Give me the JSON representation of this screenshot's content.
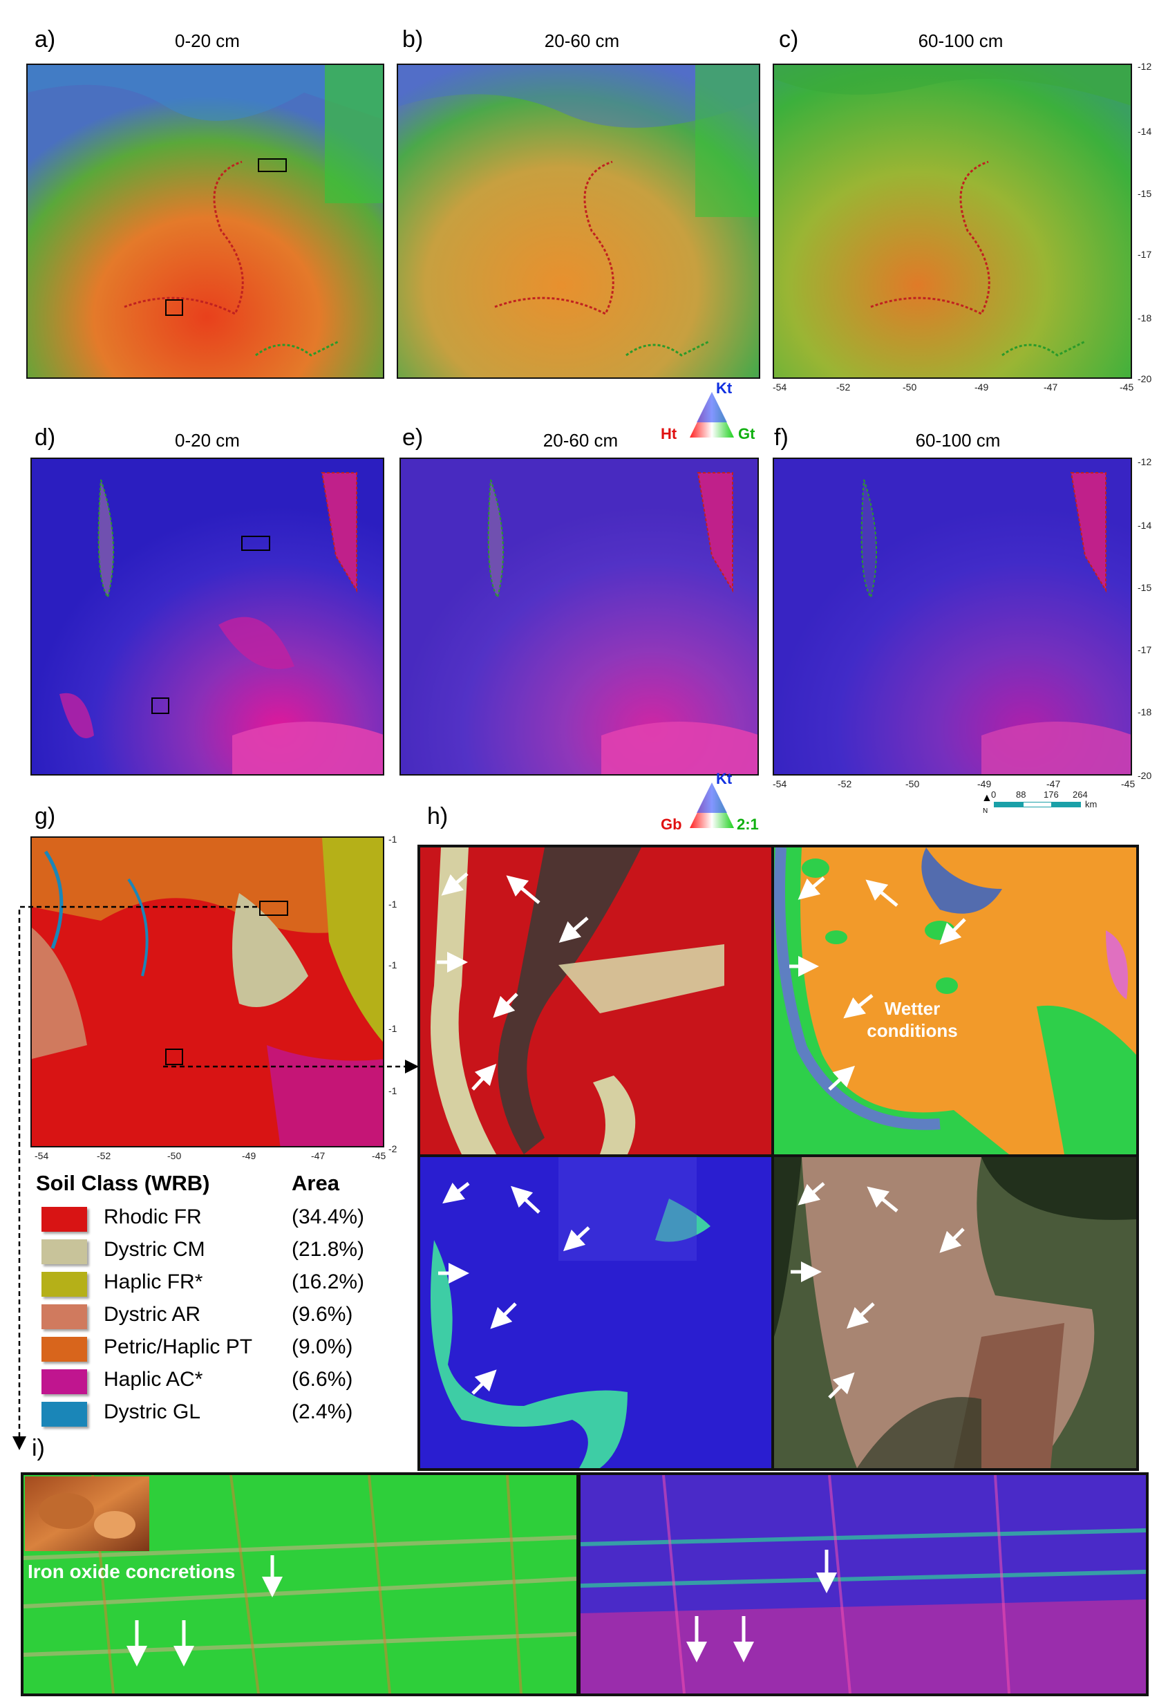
{
  "panels": {
    "a": {
      "label": "a)",
      "depth": "0-20 cm"
    },
    "b": {
      "label": "b)",
      "depth": "20-60 cm"
    },
    "c": {
      "label": "c)",
      "depth": "60-100 cm"
    },
    "d": {
      "label": "d)",
      "depth": "0-20 cm"
    },
    "e": {
      "label": "e)",
      "depth": "20-60 cm"
    },
    "f": {
      "label": "f)",
      "depth": "60-100 cm"
    },
    "g": {
      "label": "g)"
    },
    "h": {
      "label": "h)"
    },
    "i": {
      "label": "i)"
    }
  },
  "axes": {
    "lat_top": [
      "-12",
      "-14",
      "-15",
      "-17",
      "-18",
      "-20"
    ],
    "lon": [
      "-54",
      "-52",
      "-50",
      "-49",
      "-47",
      "-45"
    ],
    "lat_g": [
      "-1",
      "-1",
      "-1",
      "-1",
      "-1",
      "-2"
    ]
  },
  "ternary_top": {
    "top": "Kt",
    "left": "Ht",
    "right": "Gt",
    "colors": {
      "top": "#1030e0",
      "left": "#e01010",
      "right": "#10c010"
    }
  },
  "ternary_bottom": {
    "top": "Kt",
    "left": "Gb",
    "right": "2:1",
    "colors": {
      "top": "#1030e0",
      "left": "#e01010",
      "right": "#10c010"
    }
  },
  "scalebar": {
    "ticks": [
      "0",
      "88",
      "176",
      "264"
    ],
    "unit": "km",
    "north": "N"
  },
  "legend": {
    "title": "Soil Class (WRB)",
    "area_header": "Area",
    "items": [
      {
        "name": "Rhodic FR",
        "area": "(34.4%)",
        "color": "#d81414"
      },
      {
        "name": "Dystric CM",
        "area": "(21.8%)",
        "color": "#c8c39a"
      },
      {
        "name": "Haplic FR*",
        "area": "(16.2%)",
        "color": "#b5b018"
      },
      {
        "name": "Dystric AR",
        "area": "(9.6%)",
        "color": "#d07a5e"
      },
      {
        "name": "Petric/Haplic PT",
        "area": "(9.0%)",
        "color": "#d8651c"
      },
      {
        "name": "Haplic AC*",
        "area": "(6.6%)",
        "color": "#c0158f"
      },
      {
        "name": "Dystric GL",
        "area": "(2.4%)",
        "color": "#1a86b8"
      }
    ]
  },
  "annotations": {
    "wetter": [
      "Wetter",
      "conditions"
    ],
    "iron": "Iron oxide concretions"
  }
}
